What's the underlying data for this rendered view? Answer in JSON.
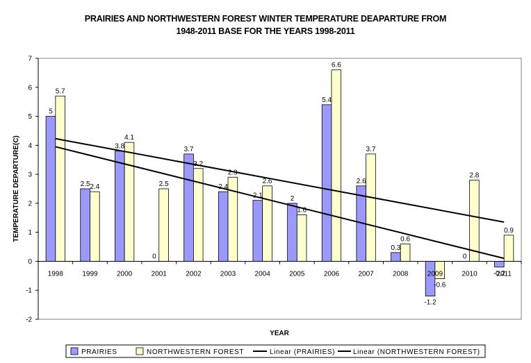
{
  "chart_data": {
    "type": "bar",
    "title_line1": "PRAIRIES AND NORTHWESTERN FOREST WINTER TEMPERATURE DEAPARTURE  FROM",
    "title_line2": "1948-2011 BASE FOR THE YEARS 1998-2011",
    "xlabel": "YEAR",
    "ylabel": "TEMPERATURE DEPARTURE(C)",
    "ylim": [
      -2,
      7
    ],
    "yticks": [
      -2,
      -1,
      0,
      1,
      2,
      3,
      4,
      5,
      6,
      7
    ],
    "categories": [
      "1998",
      "1999",
      "2000",
      "2001",
      "2002",
      "2003",
      "2004",
      "2005",
      "2006",
      "2007",
      "2008",
      "2009",
      "2010",
      "2011"
    ],
    "series": [
      {
        "name": "PRAIRIES",
        "color": "#9999ff",
        "values": [
          5,
          2.5,
          3.8,
          0,
          3.7,
          2.4,
          2.1,
          2,
          5.4,
          2.6,
          0.3,
          -1.2,
          0,
          -0.2
        ],
        "labels": [
          "5",
          "2.5",
          "3.8",
          "0",
          "3.7",
          "2.4",
          "2.1",
          "2",
          "5.4",
          "2.6",
          "0.3",
          "-1.2",
          "0",
          "-0.2"
        ]
      },
      {
        "name": "NORTHWESTERN FOREST",
        "color": "#ffffcc",
        "values": [
          5.7,
          2.4,
          4.1,
          2.5,
          3.2,
          2.9,
          2.6,
          1.6,
          6.6,
          3.7,
          0.6,
          -0.6,
          2.8,
          0.9
        ],
        "labels": [
          "5.7",
          "2.4",
          "4.1",
          "2.5",
          "3.2",
          "2.9",
          "2.6",
          "1.6",
          "6.6",
          "3.7",
          "0.6",
          "-0.6",
          "2.8",
          "0.9"
        ]
      }
    ],
    "trendlines": [
      {
        "name": "Linear (PRAIRIES)",
        "start": 3.95,
        "end": 0.1
      },
      {
        "name": "Linear (NORTHWESTERN FOREST)",
        "start": 4.23,
        "end": 1.35
      }
    ],
    "legend": {
      "placement": "bottom",
      "entries": [
        "PRAIRIES",
        "NORTHWESTERN FOREST",
        "Linear (PRAIRIES)",
        "Linear (NORTHWESTERN FOREST)"
      ]
    },
    "grid": false
  }
}
